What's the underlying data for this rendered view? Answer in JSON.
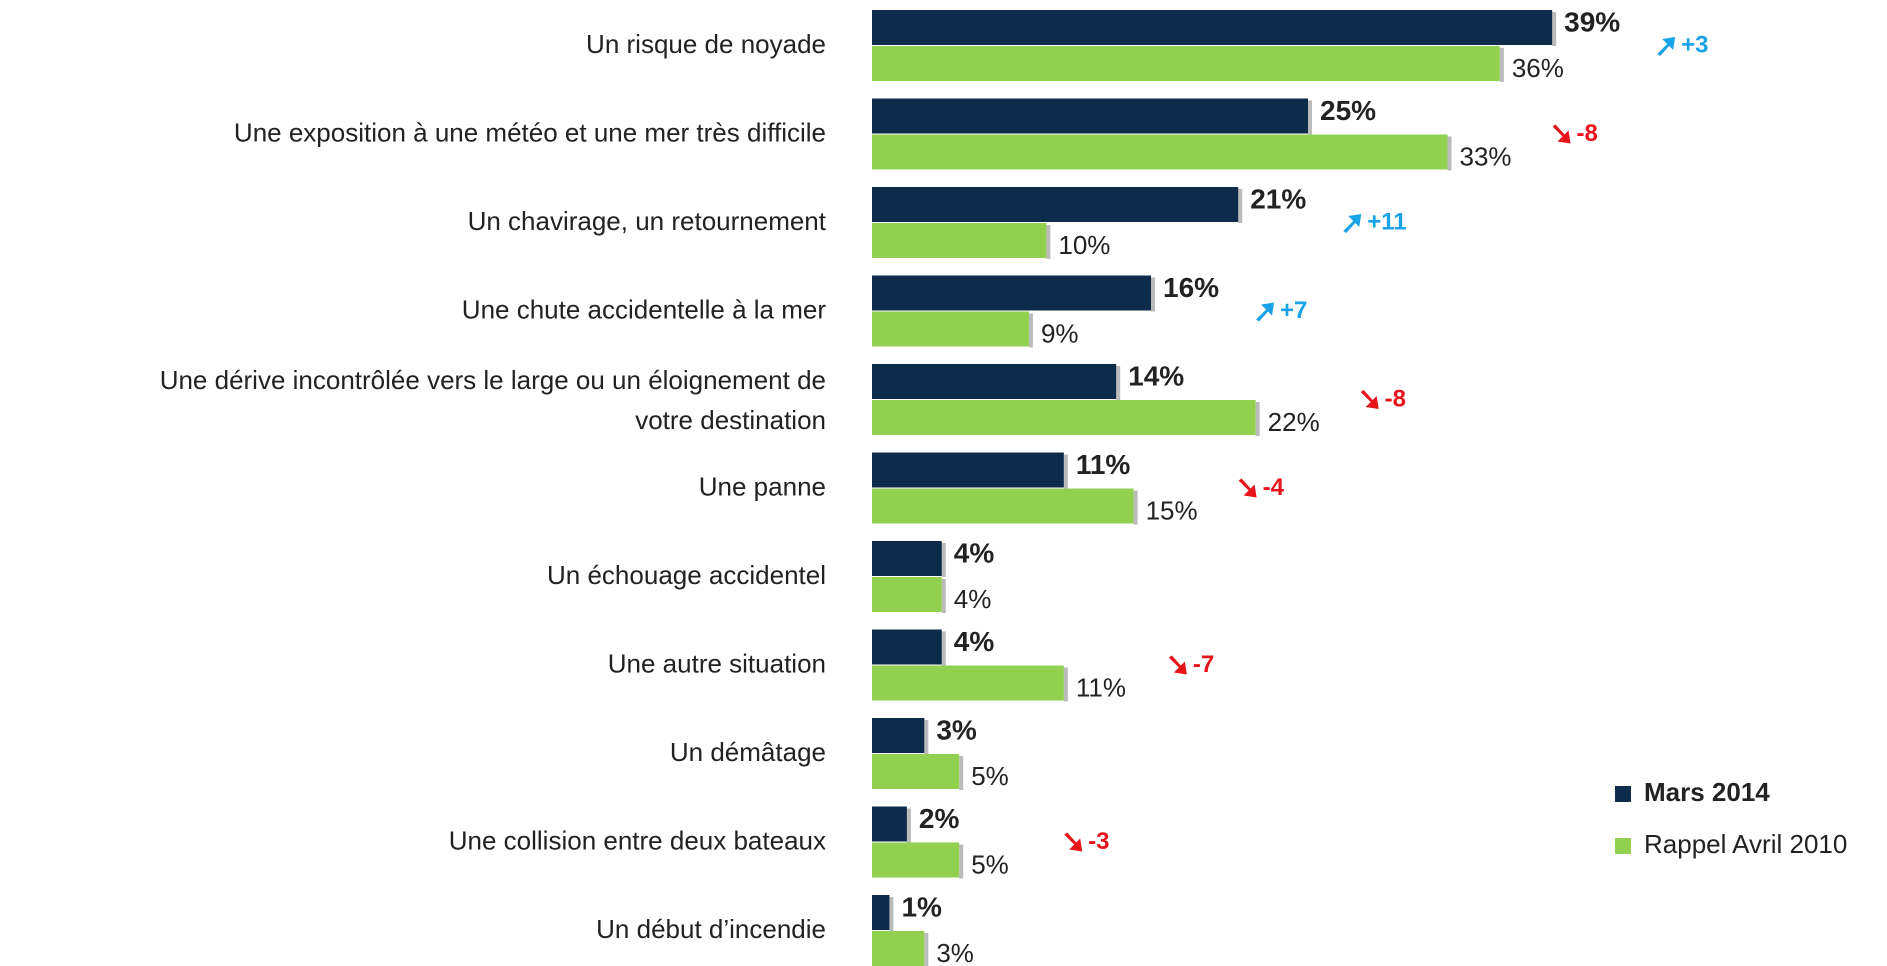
{
  "chart_data": {
    "type": "bar",
    "orientation": "horizontal",
    "categories": [
      "Un risque de noyade",
      "Une exposition à une météo et une mer très difficile",
      "Un chavirage, un retournement",
      "Une chute accidentelle à la mer",
      [
        "Une dérive incontrôlée vers le large ou un éloignement de",
        "votre destination"
      ],
      "Une panne",
      "Un échouage accidentel",
      "Une autre situation",
      "Un démâtage",
      "Une collision entre deux bateaux",
      "Un début d’incendie"
    ],
    "series": [
      {
        "name": "Mars 2014",
        "color": "#0d2b4a",
        "values": [
          39,
          25,
          21,
          16,
          14,
          11,
          4,
          4,
          3,
          2,
          1
        ],
        "value_labels": [
          "39%",
          "25%",
          "21%",
          "16%",
          "14%",
          "11%",
          "4%",
          "4%",
          "3%",
          "2%",
          "1%"
        ]
      },
      {
        "name": "Rappel Avril 2010",
        "color": "#92d050",
        "values": [
          36,
          33,
          10,
          9,
          22,
          15,
          4,
          11,
          5,
          5,
          3
        ],
        "value_labels": [
          "36%",
          "33%",
          "10%",
          "9%",
          "22%",
          "15%",
          "4%",
          "11%",
          "5%",
          "5%",
          "3%"
        ]
      }
    ],
    "changes": [
      3,
      -8,
      11,
      7,
      -8,
      -4,
      null,
      -7,
      null,
      -3,
      null
    ],
    "change_labels": [
      "+3",
      "-8",
      "+11",
      "+7",
      "-8",
      "-4",
      null,
      "-7",
      null,
      "-3",
      null
    ],
    "change_colors": {
      "up": "#1aa3e8",
      "down": "#e8141b"
    },
    "xlim": [
      0,
      50
    ],
    "legend": "lower right"
  }
}
